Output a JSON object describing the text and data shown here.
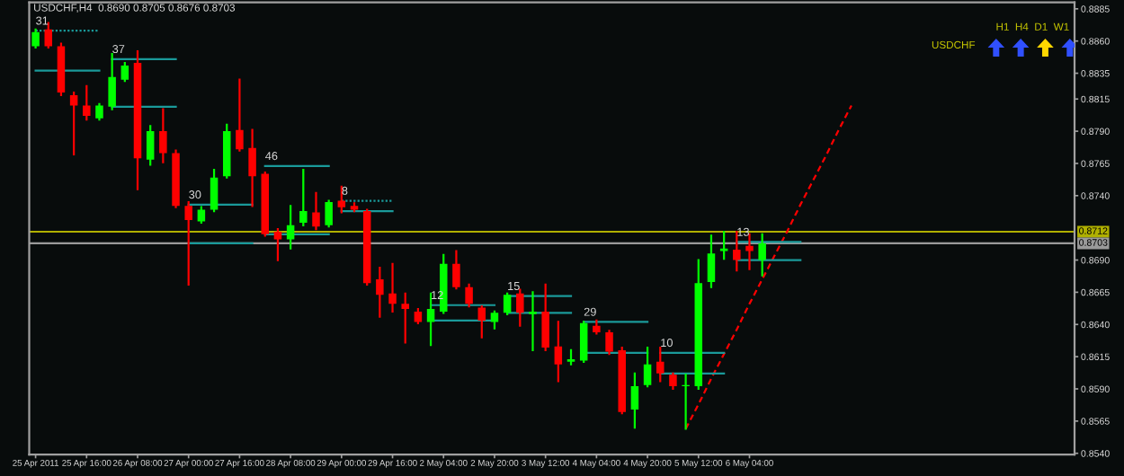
{
  "chart_data": {
    "type": "candlestick",
    "title": "USDCHF,H4  0.8690 0.8705 0.8676 0.8703",
    "categories": [
      "25 Apr 2011",
      null,
      null,
      null,
      "25 Apr 16:00",
      null,
      null,
      null,
      "26 Apr 08:00",
      null,
      null,
      null,
      "27 Apr 00:00",
      null,
      null,
      null,
      "27 Apr 16:00",
      null,
      null,
      null,
      "28 Apr 08:00",
      null,
      null,
      null,
      "29 Apr 00:00",
      null,
      null,
      null,
      "29 Apr 16:00",
      null,
      null,
      null,
      "2 May 04:00",
      null,
      null,
      null,
      "2 May 20:00",
      null,
      null,
      null,
      "3 May 12:00",
      null,
      null,
      null,
      "4 May 04:00",
      null,
      null,
      null,
      "4 May 20:00",
      null,
      null,
      null,
      "5 May 12:00",
      null,
      null,
      null,
      "6 May 04:00",
      null,
      null,
      null,
      null,
      null,
      null,
      null,
      null,
      null,
      null,
      null,
      null,
      null,
      null,
      null,
      null,
      null,
      null,
      null,
      null,
      null,
      null,
      null,
      null,
      null
    ],
    "ohlc": [
      [
        0.8856,
        0.8869,
        0.8855,
        0.8867
      ],
      [
        0.8869,
        0.8874,
        0.8855,
        0.8856
      ],
      [
        0.8856,
        0.8858,
        0.8818,
        0.882
      ],
      [
        0.8818,
        0.882,
        0.8772,
        0.881
      ],
      [
        0.881,
        0.8825,
        0.8799,
        0.8802
      ],
      [
        0.88,
        0.8811,
        0.8799,
        0.881
      ],
      [
        0.8809,
        0.885,
        0.8807,
        0.8832
      ],
      [
        0.883,
        0.8843,
        0.8829,
        0.8841
      ],
      [
        0.8843,
        0.8852,
        0.8745,
        0.8769
      ],
      [
        0.8768,
        0.8794,
        0.8764,
        0.879
      ],
      [
        0.879,
        0.8807,
        0.8766,
        0.8773
      ],
      [
        0.8773,
        0.8775,
        0.8731,
        0.8732
      ],
      [
        0.8732,
        0.8735,
        0.8671,
        0.8721
      ],
      [
        0.872,
        0.8731,
        0.8719,
        0.8729
      ],
      [
        0.8729,
        0.876,
        0.8728,
        0.8754
      ],
      [
        0.8755,
        0.8795,
        0.8754,
        0.879
      ],
      [
        0.8791,
        0.883,
        0.8775,
        0.8776
      ],
      [
        0.8777,
        0.8791,
        0.8732,
        0.8755
      ],
      [
        0.8757,
        0.8758,
        0.8709,
        0.871
      ],
      [
        0.8712,
        0.8714,
        0.869,
        0.8706
      ],
      [
        0.8706,
        0.8732,
        0.8699,
        0.8717
      ],
      [
        0.8719,
        0.876,
        0.8717,
        0.8728
      ],
      [
        0.8727,
        0.8742,
        0.8714,
        0.8716
      ],
      [
        0.8717,
        0.8736,
        0.8716,
        0.8735
      ],
      [
        0.8736,
        0.8747,
        0.8727,
        0.8731
      ],
      [
        0.8732,
        0.8734,
        0.8728,
        0.8729
      ],
      [
        0.8728,
        0.8729,
        0.8671,
        0.8672
      ],
      [
        0.8675,
        0.8684,
        0.8646,
        0.8663
      ],
      [
        0.8664,
        0.8687,
        0.865,
        0.8656
      ],
      [
        0.8656,
        0.8664,
        0.8626,
        0.8652
      ],
      [
        0.865,
        0.8652,
        0.8641,
        0.8642
      ],
      [
        0.8642,
        0.8664,
        0.8624,
        0.8652
      ],
      [
        0.865,
        0.8694,
        0.8649,
        0.8687
      ],
      [
        0.8687,
        0.8697,
        0.8668,
        0.8669
      ],
      [
        0.8669,
        0.8671,
        0.8654,
        0.8656
      ],
      [
        0.8653,
        0.8654,
        0.863,
        0.8643
      ],
      [
        0.8642,
        0.865,
        0.8637,
        0.8649
      ],
      [
        0.8649,
        0.8664,
        0.8648,
        0.8663
      ],
      [
        0.8664,
        0.8667,
        0.8639,
        0.8649
      ],
      [
        0.8648,
        0.8665,
        0.862,
        0.865
      ],
      [
        0.865,
        0.8671,
        0.862,
        0.8622
      ],
      [
        0.8623,
        0.8642,
        0.8596,
        0.8609
      ],
      [
        0.8611,
        0.862,
        0.8609,
        0.8613
      ],
      [
        0.8612,
        0.8642,
        0.8611,
        0.8641
      ],
      [
        0.8639,
        0.8643,
        0.8633,
        0.8634
      ],
      [
        0.8634,
        0.8635,
        0.8617,
        0.8619
      ],
      [
        0.862,
        0.8622,
        0.8571,
        0.8572
      ],
      [
        0.8574,
        0.8602,
        0.856,
        0.8592
      ],
      [
        0.8593,
        0.8622,
        0.8592,
        0.8609
      ],
      [
        0.8611,
        0.8622,
        0.8596,
        0.8602
      ],
      [
        0.8601,
        0.8602,
        0.859,
        0.8592
      ],
      [
        0.8592,
        0.8601,
        0.8559,
        0.8593
      ],
      [
        0.8592,
        0.869,
        0.859,
        0.8672
      ],
      [
        0.8673,
        0.8709,
        0.8669,
        0.8695
      ],
      [
        0.8697,
        0.8712,
        0.8691,
        0.8699
      ],
      [
        0.8698,
        0.8712,
        0.8682,
        0.869
      ],
      [
        0.8701,
        0.871,
        0.8683,
        0.8697
      ],
      [
        0.869,
        0.871,
        0.8678,
        0.8703
      ],
      null,
      null,
      null,
      null,
      null,
      null,
      null,
      null,
      null,
      null,
      null,
      null,
      null,
      null,
      null,
      null,
      null,
      null,
      null,
      null,
      null,
      null,
      null,
      null
    ],
    "colors": [
      "#00ff00",
      "#ff0000",
      "#ff0000",
      "#ff0000",
      "#ff0000",
      "#00ff00",
      "#00ff00",
      "#00ff00",
      "#ff0000",
      "#00ff00",
      "#ff0000",
      "#ff0000",
      "#ff0000",
      "#00ff00",
      "#00ff00",
      "#00ff00",
      "#ff0000",
      "#ff0000",
      "#ff0000",
      "#ff0000",
      "#00ff00",
      "#00ff00",
      "#ff0000",
      "#00ff00",
      "#ff0000",
      "#ff0000",
      "#ff0000",
      "#ff0000",
      "#ff0000",
      "#ff0000",
      "#ff0000",
      "#00ff00",
      "#00ff00",
      "#ff0000",
      "#ff0000",
      "#ff0000",
      "#00ff00",
      "#00ff00",
      "#ff0000",
      "#00ff00",
      "#ff0000",
      "#ff0000",
      "#00ff00",
      "#00ff00",
      "#ff0000",
      "#ff0000",
      "#ff0000",
      "#00ff00",
      "#00ff00",
      "#ff0000",
      "#ff0000",
      "#00ff00",
      "#00ff00",
      "#00ff00",
      "#00ff00",
      "#ff0000",
      "#ff0000",
      "#00ff00",
      null,
      null,
      null,
      null,
      null,
      null,
      null,
      null,
      null,
      null,
      null,
      null,
      null,
      null,
      null,
      null,
      null,
      null,
      null,
      null,
      null,
      null,
      null,
      null
    ],
    "series": [
      {
        "type": "line",
        "color": "#ff0000",
        "line_style": "dashed",
        "values": [
          null,
          null,
          null,
          null,
          null,
          null,
          null,
          null,
          null,
          null,
          null,
          null,
          null,
          null,
          null,
          null,
          null,
          null,
          null,
          null,
          null,
          null,
          null,
          null,
          null,
          null,
          null,
          null,
          null,
          null,
          null,
          null,
          null,
          null,
          null,
          null,
          null,
          null,
          null,
          null,
          null,
          null,
          null,
          null,
          null,
          null,
          null,
          null,
          null,
          null,
          null,
          0.8559,
          0.8578,
          0.8598,
          0.8617,
          0.8636,
          0.8656,
          0.8675,
          0.8694,
          0.8713,
          0.8733,
          0.8752,
          0.8771,
          0.8791,
          0.881,
          null,
          null,
          null,
          null,
          null,
          null,
          null,
          null,
          null,
          null,
          null,
          null,
          null,
          null,
          null,
          null,
          null
        ]
      },
      {
        "type": "line",
        "color": "#1a9a9a",
        "line_style": "dotted",
        "values": [
          0.8868,
          0.8868,
          0.8868,
          0.8868,
          0.8868,
          0.8868,
          null,
          null,
          null,
          null,
          null,
          null,
          null,
          null,
          null,
          null,
          null,
          null,
          null,
          null,
          null,
          null,
          null,
          null,
          null,
          null,
          null,
          null,
          null,
          null,
          null,
          null,
          null,
          null,
          null,
          null,
          null,
          null,
          null,
          null,
          null,
          null,
          null,
          null,
          null,
          null,
          null,
          null,
          null,
          null,
          null,
          null,
          null,
          null,
          null,
          null,
          null,
          null,
          null,
          null,
          null,
          null,
          null,
          null,
          null,
          null,
          null,
          null,
          null,
          null,
          null,
          null,
          null,
          null,
          null,
          null,
          null,
          null,
          null,
          null,
          null,
          null
        ]
      },
      {
        "type": "line",
        "color": "#1a9a9a",
        "values": [
          0.8837,
          0.8837,
          0.8837,
          0.8837,
          0.8837,
          0.8837,
          null,
          null,
          null,
          null,
          null,
          null,
          null,
          null,
          null,
          null,
          null,
          null,
          null,
          null,
          null,
          null,
          null,
          null,
          null,
          null,
          null,
          null,
          null,
          null,
          null,
          null,
          null,
          null,
          null,
          null,
          null,
          null,
          null,
          null,
          null,
          null,
          null,
          null,
          null,
          null,
          null,
          null,
          null,
          null,
          null,
          null,
          null,
          null,
          null,
          null,
          null,
          null,
          null,
          null,
          null,
          null,
          null,
          null,
          null,
          null,
          null,
          null,
          null,
          null,
          null,
          null,
          null,
          null,
          null,
          null,
          null,
          null,
          null,
          null,
          null,
          null
        ]
      },
      {
        "type": "line",
        "color": "#1a9a9a",
        "values": [
          null,
          null,
          null,
          null,
          null,
          null,
          0.8846,
          0.8846,
          0.8846,
          0.8846,
          0.8846,
          0.8846,
          null,
          null,
          null,
          null,
          null,
          null,
          null,
          null,
          null,
          null,
          null,
          null,
          null,
          null,
          null,
          null,
          null,
          null,
          null,
          null,
          null,
          null,
          null,
          null,
          null,
          null,
          null,
          null,
          null,
          null,
          null,
          null,
          null,
          null,
          null,
          null,
          null,
          null,
          null,
          null,
          null,
          null,
          null,
          null,
          null,
          null,
          null,
          null,
          null,
          null,
          null,
          null,
          null,
          null,
          null,
          null,
          null,
          null,
          null,
          null,
          null,
          null,
          null,
          null,
          null,
          null,
          null,
          null,
          null,
          null
        ]
      },
      {
        "type": "line",
        "color": "#1a9a9a",
        "values": [
          null,
          null,
          null,
          null,
          null,
          null,
          0.8809,
          0.8809,
          0.8809,
          0.8809,
          0.8809,
          0.8809,
          null,
          null,
          null,
          null,
          null,
          null,
          null,
          null,
          null,
          null,
          null,
          null,
          null,
          null,
          null,
          null,
          null,
          null,
          null,
          null,
          null,
          null,
          null,
          null,
          null,
          null,
          null,
          null,
          null,
          null,
          null,
          null,
          null,
          null,
          null,
          null,
          null,
          null,
          null,
          null,
          null,
          null,
          null,
          null,
          null,
          null,
          null,
          null,
          null,
          null,
          null,
          null,
          null,
          null,
          null,
          null,
          null,
          null,
          null,
          null,
          null,
          null,
          null,
          null,
          null,
          null,
          null,
          null,
          null,
          null
        ]
      },
      {
        "type": "line",
        "color": "#1a9a9a",
        "values": [
          null,
          null,
          null,
          null,
          null,
          null,
          null,
          null,
          null,
          null,
          null,
          null,
          0.8733,
          0.8733,
          0.8733,
          0.8733,
          0.8733,
          0.8733,
          null,
          null,
          null,
          null,
          null,
          null,
          null,
          null,
          null,
          null,
          null,
          null,
          null,
          null,
          null,
          null,
          null,
          null,
          null,
          null,
          null,
          null,
          null,
          null,
          null,
          null,
          null,
          null,
          null,
          null,
          null,
          null,
          null,
          null,
          null,
          null,
          null,
          null,
          null,
          null,
          null,
          null,
          null,
          null,
          null,
          null,
          null,
          null,
          null,
          null,
          null,
          null,
          null,
          null,
          null,
          null,
          null,
          null,
          null,
          null,
          null,
          null,
          null,
          null
        ]
      },
      {
        "type": "line",
        "color": "#1a9a9a",
        "values": [
          null,
          null,
          null,
          null,
          null,
          null,
          null,
          null,
          null,
          null,
          null,
          null,
          0.8703,
          0.8703,
          0.8703,
          0.8703,
          0.8703,
          0.8703,
          null,
          null,
          null,
          null,
          null,
          null,
          null,
          null,
          null,
          null,
          null,
          null,
          null,
          null,
          null,
          null,
          null,
          null,
          null,
          null,
          null,
          null,
          null,
          null,
          null,
          null,
          null,
          null,
          null,
          null,
          null,
          null,
          null,
          null,
          null,
          null,
          null,
          null,
          null,
          null,
          null,
          null,
          null,
          null,
          null,
          null,
          null,
          null,
          null,
          null,
          null,
          null,
          null,
          null,
          null,
          null,
          null,
          null,
          null,
          null,
          null,
          null,
          null,
          null
        ]
      },
      {
        "type": "line",
        "color": "#1a9a9a",
        "values": [
          null,
          null,
          null,
          null,
          null,
          null,
          null,
          null,
          null,
          null,
          null,
          null,
          null,
          null,
          null,
          null,
          null,
          null,
          0.8763,
          0.8763,
          0.8763,
          0.8763,
          0.8763,
          0.8763,
          null,
          null,
          null,
          null,
          null,
          null,
          null,
          null,
          null,
          null,
          null,
          null,
          null,
          null,
          null,
          null,
          null,
          null,
          null,
          null,
          null,
          null,
          null,
          null,
          null,
          null,
          null,
          null,
          null,
          null,
          null,
          null,
          null,
          null,
          null,
          null,
          null,
          null,
          null,
          null,
          null,
          null,
          null,
          null,
          null,
          null,
          null,
          null,
          null,
          null,
          null,
          null,
          null,
          null,
          null,
          null,
          null,
          null
        ]
      },
      {
        "type": "line",
        "color": "#1a9a9a",
        "values": [
          null,
          null,
          null,
          null,
          null,
          null,
          null,
          null,
          null,
          null,
          null,
          null,
          null,
          null,
          null,
          null,
          null,
          null,
          0.871,
          0.871,
          0.871,
          0.871,
          0.871,
          0.871,
          null,
          null,
          null,
          null,
          null,
          null,
          null,
          null,
          null,
          null,
          null,
          null,
          null,
          null,
          null,
          null,
          null,
          null,
          null,
          null,
          null,
          null,
          null,
          null,
          null,
          null,
          null,
          null,
          null,
          null,
          null,
          null,
          null,
          null,
          null,
          null,
          null,
          null,
          null,
          null,
          null,
          null,
          null,
          null,
          null,
          null,
          null,
          null,
          null,
          null,
          null,
          null,
          null,
          null,
          null,
          null,
          null,
          null
        ]
      },
      {
        "type": "line",
        "color": "#1a9a9a",
        "line_style": "dotted",
        "values": [
          null,
          null,
          null,
          null,
          null,
          null,
          null,
          null,
          null,
          null,
          null,
          null,
          null,
          null,
          null,
          null,
          null,
          null,
          null,
          null,
          null,
          null,
          null,
          null,
          0.8736,
          0.8736,
          0.8736,
          0.8736,
          0.8736,
          null,
          null,
          null,
          null,
          null,
          null,
          null,
          null,
          null,
          null,
          null,
          null,
          null,
          null,
          null,
          null,
          null,
          null,
          null,
          null,
          null,
          null,
          null,
          null,
          null,
          null,
          null,
          null,
          null,
          null,
          null,
          null,
          null,
          null,
          null,
          null,
          null,
          null,
          null,
          null,
          null,
          null,
          null,
          null,
          null,
          null,
          null,
          null,
          null,
          null,
          null,
          null,
          null
        ]
      },
      {
        "type": "line",
        "color": "#1a9a9a",
        "values": [
          null,
          null,
          null,
          null,
          null,
          null,
          null,
          null,
          null,
          null,
          null,
          null,
          null,
          null,
          null,
          null,
          null,
          null,
          null,
          null,
          null,
          null,
          null,
          null,
          0.8728,
          0.8728,
          0.8728,
          0.8728,
          0.8728,
          null,
          null,
          null,
          null,
          null,
          null,
          null,
          null,
          null,
          null,
          null,
          null,
          null,
          null,
          null,
          null,
          null,
          null,
          null,
          null,
          null,
          null,
          null,
          null,
          null,
          null,
          null,
          null,
          null,
          null,
          null,
          null,
          null,
          null,
          null,
          null,
          null,
          null,
          null,
          null,
          null,
          null,
          null,
          null,
          null,
          null,
          null,
          null,
          null,
          null,
          null,
          null,
          null
        ]
      },
      {
        "type": "line",
        "color": "#1a9a9a",
        "values": [
          null,
          null,
          null,
          null,
          null,
          null,
          null,
          null,
          null,
          null,
          null,
          null,
          null,
          null,
          null,
          null,
          null,
          null,
          null,
          null,
          null,
          null,
          null,
          null,
          null,
          null,
          null,
          null,
          null,
          null,
          null,
          0.8655,
          0.8655,
          0.8655,
          0.8655,
          0.8655,
          0.8655,
          null,
          null,
          null,
          null,
          null,
          null,
          null,
          null,
          null,
          null,
          null,
          null,
          null,
          null,
          null,
          null,
          null,
          null,
          null,
          null,
          null,
          null,
          null,
          null,
          null,
          null,
          null,
          null,
          null,
          null,
          null,
          null,
          null,
          null,
          null,
          null,
          null,
          null,
          null,
          null,
          null,
          null,
          null,
          null,
          null
        ]
      },
      {
        "type": "line",
        "color": "#1a9a9a",
        "values": [
          null,
          null,
          null,
          null,
          null,
          null,
          null,
          null,
          null,
          null,
          null,
          null,
          null,
          null,
          null,
          null,
          null,
          null,
          null,
          null,
          null,
          null,
          null,
          null,
          null,
          null,
          null,
          null,
          null,
          null,
          null,
          0.8643,
          0.8643,
          0.8643,
          0.8643,
          0.8643,
          0.8643,
          null,
          null,
          null,
          null,
          null,
          null,
          null,
          null,
          null,
          null,
          null,
          null,
          null,
          null,
          null,
          null,
          null,
          null,
          null,
          null,
          null,
          null,
          null,
          null,
          null,
          null,
          null,
          null,
          null,
          null,
          null,
          null,
          null,
          null,
          null,
          null,
          null,
          null,
          null,
          null,
          null,
          null,
          null,
          null,
          null
        ]
      },
      {
        "type": "line",
        "color": "#1a9a9a",
        "values": [
          null,
          null,
          null,
          null,
          null,
          null,
          null,
          null,
          null,
          null,
          null,
          null,
          null,
          null,
          null,
          null,
          null,
          null,
          null,
          null,
          null,
          null,
          null,
          null,
          null,
          null,
          null,
          null,
          null,
          null,
          null,
          null,
          null,
          null,
          null,
          null,
          null,
          0.8662,
          0.8662,
          0.8662,
          0.8662,
          0.8662,
          0.8662,
          null,
          null,
          null,
          null,
          null,
          null,
          null,
          null,
          null,
          null,
          null,
          null,
          null,
          null,
          null,
          null,
          null,
          null,
          null,
          null,
          null,
          null,
          null,
          null,
          null,
          null,
          null,
          null,
          null,
          null,
          null,
          null,
          null,
          null,
          null,
          null,
          null,
          null,
          null
        ]
      },
      {
        "type": "line",
        "color": "#1a9a9a",
        "values": [
          null,
          null,
          null,
          null,
          null,
          null,
          null,
          null,
          null,
          null,
          null,
          null,
          null,
          null,
          null,
          null,
          null,
          null,
          null,
          null,
          null,
          null,
          null,
          null,
          null,
          null,
          null,
          null,
          null,
          null,
          null,
          null,
          null,
          null,
          null,
          null,
          null,
          0.8649,
          0.8649,
          0.8649,
          0.8649,
          0.8649,
          0.8649,
          null,
          null,
          null,
          null,
          null,
          null,
          null,
          null,
          null,
          null,
          null,
          null,
          null,
          null,
          null,
          null,
          null,
          null,
          null,
          null,
          null,
          null,
          null,
          null,
          null,
          null,
          null,
          null,
          null,
          null,
          null,
          null,
          null,
          null,
          null,
          null,
          null,
          null,
          null
        ]
      },
      {
        "type": "line",
        "color": "#1a9a9a",
        "values": [
          null,
          null,
          null,
          null,
          null,
          null,
          null,
          null,
          null,
          null,
          null,
          null,
          null,
          null,
          null,
          null,
          null,
          null,
          null,
          null,
          null,
          null,
          null,
          null,
          null,
          null,
          null,
          null,
          null,
          null,
          null,
          null,
          null,
          null,
          null,
          null,
          null,
          null,
          null,
          null,
          null,
          null,
          null,
          0.8642,
          0.8642,
          0.8642,
          0.8642,
          0.8642,
          0.8642,
          null,
          null,
          null,
          null,
          null,
          null,
          null,
          null,
          null,
          null,
          null,
          null,
          null,
          null,
          null,
          null,
          null,
          null,
          null,
          null,
          null,
          null,
          null,
          null,
          null,
          null,
          null,
          null,
          null,
          null,
          null,
          null,
          null
        ]
      },
      {
        "type": "line",
        "color": "#1a9a9a",
        "values": [
          null,
          null,
          null,
          null,
          null,
          null,
          null,
          null,
          null,
          null,
          null,
          null,
          null,
          null,
          null,
          null,
          null,
          null,
          null,
          null,
          null,
          null,
          null,
          null,
          null,
          null,
          null,
          null,
          null,
          null,
          null,
          null,
          null,
          null,
          null,
          null,
          null,
          null,
          null,
          null,
          null,
          null,
          null,
          0.8618,
          0.8618,
          0.8618,
          0.8618,
          0.8618,
          0.8618,
          null,
          null,
          null,
          null,
          null,
          null,
          null,
          null,
          null,
          null,
          null,
          null,
          null,
          null,
          null,
          null,
          null,
          null,
          null,
          null,
          null,
          null,
          null,
          null,
          null,
          null,
          null,
          null,
          null,
          null,
          null,
          null,
          null
        ]
      },
      {
        "type": "line",
        "color": "#1a9a9a",
        "values": [
          null,
          null,
          null,
          null,
          null,
          null,
          null,
          null,
          null,
          null,
          null,
          null,
          null,
          null,
          null,
          null,
          null,
          null,
          null,
          null,
          null,
          null,
          null,
          null,
          null,
          null,
          null,
          null,
          null,
          null,
          null,
          null,
          null,
          null,
          null,
          null,
          null,
          null,
          null,
          null,
          null,
          null,
          null,
          null,
          null,
          null,
          null,
          null,
          null,
          0.8618,
          0.8618,
          0.8618,
          0.8618,
          0.8618,
          0.8618,
          null,
          null,
          null,
          null,
          null,
          null,
          null,
          null,
          null,
          null,
          null,
          null,
          null,
          null,
          null,
          null,
          null,
          null,
          null,
          null,
          null,
          null,
          null,
          null,
          null,
          null,
          null
        ]
      },
      {
        "type": "line",
        "color": "#1a9a9a",
        "values": [
          null,
          null,
          null,
          null,
          null,
          null,
          null,
          null,
          null,
          null,
          null,
          null,
          null,
          null,
          null,
          null,
          null,
          null,
          null,
          null,
          null,
          null,
          null,
          null,
          null,
          null,
          null,
          null,
          null,
          null,
          null,
          null,
          null,
          null,
          null,
          null,
          null,
          null,
          null,
          null,
          null,
          null,
          null,
          null,
          null,
          null,
          null,
          null,
          null,
          0.8602,
          0.8602,
          0.8602,
          0.8602,
          0.8602,
          0.8602,
          null,
          null,
          null,
          null,
          null,
          null,
          null,
          null,
          null,
          null,
          null,
          null,
          null,
          null,
          null,
          null,
          null,
          null,
          null,
          null,
          null,
          null,
          null,
          null,
          null,
          null,
          null
        ]
      },
      {
        "type": "line",
        "color": "#1a9a9a",
        "values": [
          null,
          null,
          null,
          null,
          null,
          null,
          null,
          null,
          null,
          null,
          null,
          null,
          null,
          null,
          null,
          null,
          null,
          null,
          null,
          null,
          null,
          null,
          null,
          null,
          null,
          null,
          null,
          null,
          null,
          null,
          null,
          null,
          null,
          null,
          null,
          null,
          null,
          null,
          null,
          null,
          null,
          null,
          null,
          null,
          null,
          null,
          null,
          null,
          null,
          null,
          null,
          null,
          null,
          null,
          null,
          0.8704,
          0.8704,
          0.8704,
          0.8704,
          0.8704,
          0.8704,
          null,
          null,
          null,
          null,
          null,
          null,
          null,
          null,
          null,
          null,
          null,
          null,
          null,
          null,
          null,
          null,
          null,
          null,
          null,
          null,
          null
        ]
      },
      {
        "type": "line",
        "color": "#1a9a9a",
        "values": [
          null,
          null,
          null,
          null,
          null,
          null,
          null,
          null,
          null,
          null,
          null,
          null,
          null,
          null,
          null,
          null,
          null,
          null,
          null,
          null,
          null,
          null,
          null,
          null,
          null,
          null,
          null,
          null,
          null,
          null,
          null,
          null,
          null,
          null,
          null,
          null,
          null,
          null,
          null,
          null,
          null,
          null,
          null,
          null,
          null,
          null,
          null,
          null,
          null,
          null,
          null,
          null,
          null,
          null,
          null,
          0.869,
          0.869,
          0.869,
          0.869,
          0.869,
          0.869,
          null,
          null,
          null,
          null,
          null,
          null,
          null,
          null,
          null,
          null,
          null,
          null,
          null,
          null,
          null,
          null,
          null,
          null,
          null,
          null,
          null
        ]
      }
    ],
    "ref_lines": [
      {
        "axis": "y",
        "value": 0.8712,
        "label": "0.8712",
        "color": "#b0b000"
      },
      {
        "axis": "y",
        "value": 0.8703,
        "label": "0.8703",
        "color": "#9a9a9a"
      }
    ],
    "annotations": [
      "31",
      "37",
      "30",
      "46",
      "8",
      "12",
      "15",
      "29",
      "10",
      "13",
      "H1  H4  D1  W1",
      "USDCHF"
    ],
    "ylim": [
      0.8539,
      0.889
    ],
    "yticks": [
      {
        "value": 0.8885,
        "label": "0.8885"
      },
      {
        "value": 0.886,
        "label": "0.8860"
      },
      {
        "value": 0.8835,
        "label": "0.8835"
      },
      {
        "value": 0.8815,
        "label": "0.8815"
      },
      {
        "value": 0.879,
        "label": "0.8790"
      },
      {
        "value": 0.8765,
        "label": "0.8765"
      },
      {
        "value": 0.874,
        "label": "0.8740"
      },
      {
        "value": 0.869,
        "label": "0.8690"
      },
      {
        "value": 0.8665,
        "label": "0.8665"
      },
      {
        "value": 0.864,
        "label": "0.8640"
      },
      {
        "value": 0.8615,
        "label": "0.8615"
      },
      {
        "value": 0.859,
        "label": "0.8590"
      },
      {
        "value": 0.8565,
        "label": "0.8565"
      },
      {
        "value": 0.854,
        "label": "0.8540"
      }
    ],
    "grid": false,
    "legend": false
  }
}
